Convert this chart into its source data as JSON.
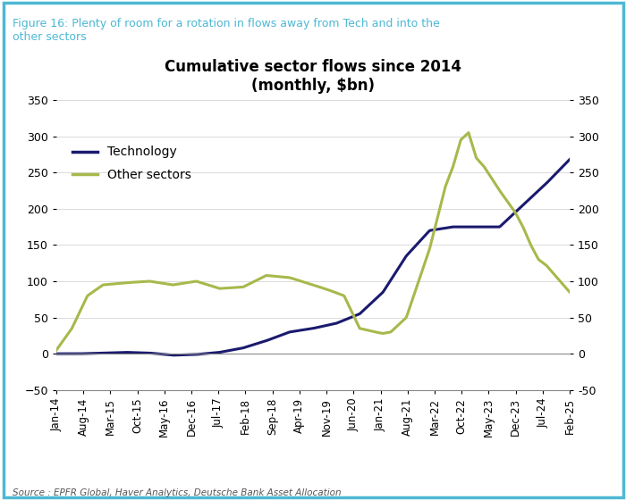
{
  "title": "Cumulative sector flows since 2014\n(monthly, $bn)",
  "figure_label": "Figure 16: Plenty of room for a rotation in flows away from Tech and into the\nother sectors",
  "source_text": "Source : EPFR Global, Haver Analytics, Deutsche Bank Asset Allocation",
  "ylim": [
    -50,
    350
  ],
  "yticks": [
    -50,
    0,
    50,
    100,
    150,
    200,
    250,
    300,
    350
  ],
  "tech_color": "#1a1a6e",
  "other_color": "#a8b84b",
  "tech_label": "Technology",
  "other_label": "Other sectors",
  "background_color": "#ffffff",
  "border_color": "#4db8d4",
  "x_labels": [
    "Jan-14",
    "Aug-14",
    "Mar-15",
    "Oct-15",
    "May-16",
    "Dec-16",
    "Jul-17",
    "Feb-18",
    "Sep-18",
    "Apr-19",
    "Nov-19",
    "Jun-20",
    "Jan-21",
    "Aug-21",
    "Mar-22",
    "Oct-22",
    "May-23",
    "Dec-23",
    "Jul-24",
    "Feb-25"
  ],
  "tech_anchors_x": [
    0,
    6,
    12,
    18,
    24,
    30,
    36,
    42,
    48,
    54,
    60,
    66,
    72,
    78,
    84,
    90,
    96,
    102,
    108,
    114,
    120,
    126,
    132
  ],
  "tech_anchors_y": [
    0,
    0,
    1,
    2,
    1,
    -2,
    -1,
    2,
    8,
    18,
    30,
    35,
    42,
    55,
    85,
    135,
    170,
    175,
    175,
    175,
    205,
    235,
    268
  ],
  "other_anchors_x": [
    0,
    4,
    8,
    12,
    18,
    24,
    30,
    36,
    42,
    48,
    54,
    60,
    66,
    70,
    74,
    78,
    82,
    84,
    86,
    90,
    96,
    100,
    102,
    104,
    106,
    108,
    110,
    114,
    118,
    120,
    122,
    124,
    126,
    132
  ],
  "other_anchors_y": [
    5,
    35,
    80,
    95,
    98,
    100,
    95,
    100,
    90,
    92,
    108,
    105,
    95,
    88,
    80,
    35,
    30,
    28,
    30,
    50,
    145,
    230,
    258,
    295,
    305,
    270,
    258,
    225,
    195,
    175,
    150,
    130,
    122,
    85
  ]
}
